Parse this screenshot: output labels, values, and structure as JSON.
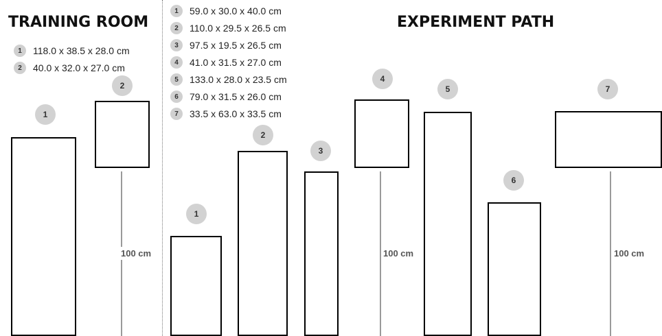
{
  "training_room": {
    "title": "TRAINING ROOM",
    "legend": [
      {
        "num": "1",
        "text": "118.0 x 38.5 x 28.0 cm"
      },
      {
        "num": "2",
        "text": "40.0 x 32.0 x 27.0 cm"
      }
    ],
    "badges": [
      "1",
      "2"
    ],
    "pole_label": "100 cm"
  },
  "experiment_path": {
    "title": "EXPERIMENT PATH",
    "legend": [
      {
        "num": "1",
        "text": "59.0 x 30.0 x 40.0 cm"
      },
      {
        "num": "2",
        "text": "110.0 x 29.5 x 26.5 cm"
      },
      {
        "num": "3",
        "text": "97.5 x 19.5 x 26.5 cm"
      },
      {
        "num": "4",
        "text": "41.0 x 31.5 x 27.0 cm"
      },
      {
        "num": "5",
        "text": "133.0 x 28.0 x 23.5 cm"
      },
      {
        "num": "6",
        "text": "79.0 x 31.5 x 26.0 cm"
      },
      {
        "num": "7",
        "text": "33.5 x 63.0 x 33.5 cm"
      }
    ],
    "badges": [
      "1",
      "2",
      "3",
      "4",
      "5",
      "6",
      "7"
    ],
    "pole_labels": [
      "100 cm",
      "100 cm"
    ]
  },
  "colors": {
    "badge": "#d2d2d2",
    "outline": "#000000",
    "pole": "#9a9a9a"
  }
}
